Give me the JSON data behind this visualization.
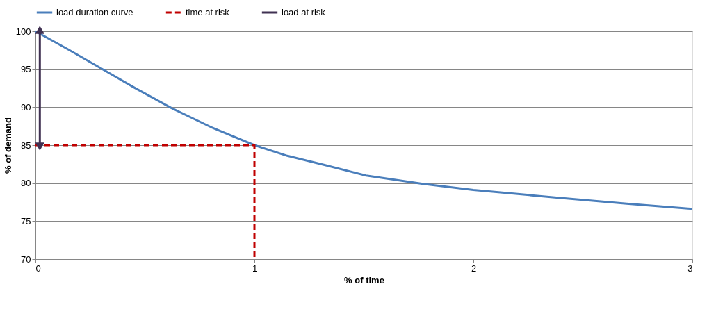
{
  "chart_data": {
    "type": "line",
    "xlabel": "% of time",
    "ylabel": "% of demand",
    "xlim": [
      0,
      3
    ],
    "xticks": [
      0,
      1,
      2,
      3
    ],
    "ylim": [
      70,
      100
    ],
    "yticks": [
      70,
      75,
      80,
      85,
      90,
      95,
      100
    ],
    "grid": "y",
    "legend": "top",
    "marker": "none",
    "series": [
      {
        "name": "load duration curve",
        "color": "#4a7ebb",
        "line_style": "solid",
        "x": [
          0,
          0.15,
          0.3,
          0.45,
          0.62,
          0.8,
          1,
          1.15,
          1.32,
          1.51,
          1.77,
          2,
          2.38,
          2.7,
          3
        ],
        "values": [
          100,
          97.6,
          95.1,
          92.6,
          89.9,
          87.4,
          85,
          83.6,
          82.4,
          81.0,
          79.9,
          79.1,
          78.1,
          77.3,
          76.6
        ]
      },
      {
        "name": "time at risk",
        "color": "#c00000",
        "line_style": "dashed",
        "x": [
          0,
          1,
          1
        ],
        "values": [
          85,
          85,
          70
        ]
      },
      {
        "name": "load at risk",
        "color": "#403152",
        "line_style": "solid",
        "marker": "triangle",
        "x": [
          0.02,
          0.02
        ],
        "values": [
          100,
          85
        ]
      }
    ]
  }
}
